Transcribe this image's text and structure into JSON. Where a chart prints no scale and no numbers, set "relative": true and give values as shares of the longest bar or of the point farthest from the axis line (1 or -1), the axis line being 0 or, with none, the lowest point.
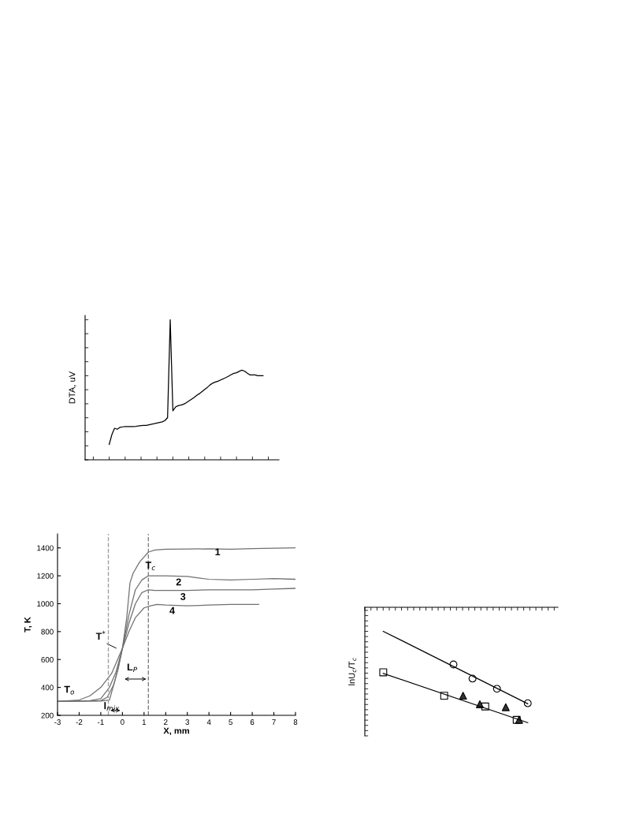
{
  "chart_data": [
    {
      "type": "line",
      "relative": true,
      "ylabel": "DTA, uV",
      "categories": [
        null,
        null,
        null,
        null,
        null,
        null,
        null,
        null,
        null,
        null,
        null,
        null,
        null,
        null,
        null,
        null,
        null,
        null,
        null,
        null,
        null,
        null,
        null,
        null,
        null,
        null,
        null,
        null,
        null,
        null,
        null,
        null,
        null,
        null,
        null,
        null,
        null,
        null,
        null,
        null,
        null,
        null,
        null,
        null,
        null,
        null,
        null,
        null,
        null,
        null,
        null,
        null,
        null,
        null,
        null,
        null,
        null,
        null,
        null
      ],
      "series": [
        {
          "color": "#000000",
          "values": [
            0.11,
            0.18,
            0.225,
            0.218,
            0.231,
            0.235,
            0.237,
            0.237,
            0.237,
            0.237,
            0.239,
            0.242,
            0.244,
            0.246,
            0.246,
            0.25,
            0.254,
            0.258,
            0.263,
            0.267,
            0.271,
            0.28,
            0.301,
            1,
            0.35,
            0.377,
            0.386,
            0.39,
            0.396,
            0.407,
            0.419,
            0.432,
            0.445,
            0.46,
            0.472,
            0.487,
            0.502,
            0.517,
            0.534,
            0.547,
            0.555,
            0.561,
            0.57,
            0.578,
            0.587,
            0.597,
            0.608,
            0.617,
            0.621,
            0.631,
            0.64,
            0.633,
            0.619,
            0.606,
            0.606,
            0.606,
            0.6,
            0.6,
            0.6
          ]
        }
      ]
    },
    {
      "type": "line",
      "xlabel": "X, mm",
      "ylabel": "T, K",
      "xlim": [
        -3,
        8
      ],
      "ylim": [
        200,
        1500
      ],
      "xticks": [
        -3,
        -2,
        -1,
        0,
        1,
        2,
        3,
        4,
        5,
        6,
        7,
        8
      ],
      "yticks": [
        200,
        400,
        600,
        800,
        1000,
        1200,
        1400
      ],
      "series": [
        {
          "color": "#707070",
          "x": [
            -3,
            -1,
            -0.6,
            -0.4,
            -0.2,
            0,
            0.2,
            0.35,
            0.5,
            0.8,
            1.2,
            1.5,
            2,
            3,
            4,
            5,
            6,
            7,
            8
          ],
          "values": [
            300,
            302,
            310,
            420,
            540,
            680,
            900,
            1150,
            1220,
            1300,
            1370,
            1385,
            1390,
            1392,
            1393,
            1390,
            1395,
            1398,
            1400
          ]
        },
        {
          "color": "#707070",
          "x": [
            -3,
            -1,
            -0.7,
            -0.4,
            -0.2,
            0,
            0.3,
            0.6,
            0.9,
            1.2,
            2,
            3,
            4,
            5,
            6,
            7,
            8
          ],
          "values": [
            300,
            305,
            330,
            420,
            530,
            680,
            920,
            1100,
            1170,
            1200,
            1200,
            1195,
            1175,
            1170,
            1175,
            1180,
            1175
          ]
        },
        {
          "color": "#707070",
          "x": [
            -3,
            -1.5,
            -1,
            -0.6,
            -0.3,
            0,
            0.3,
            0.6,
            0.9,
            1.2,
            1.5,
            2,
            3,
            4,
            5,
            6,
            7,
            8
          ],
          "values": [
            300,
            305,
            320,
            400,
            510,
            680,
            860,
            1000,
            1080,
            1100,
            1095,
            1095,
            1095,
            1100,
            1100,
            1100,
            1105,
            1110
          ]
        },
        {
          "color": "#707070",
          "x": [
            -3,
            -2,
            -1.5,
            -1,
            -0.5,
            0,
            0.3,
            0.6,
            1,
            1.3,
            1.6,
            2,
            3,
            4,
            5,
            6,
            6.3
          ],
          "values": [
            300,
            310,
            340,
            400,
            500,
            680,
            800,
            900,
            970,
            985,
            995,
            990,
            985,
            990,
            995,
            995,
            995
          ]
        }
      ],
      "ref_lines": [
        {
          "axis": "x",
          "value": 1.2,
          "color": "#808080",
          "line_style": "dashed"
        },
        {
          "axis": "x",
          "value": -0.65,
          "color": "#a0a0a0",
          "line_style": "dashed"
        }
      ],
      "annotations": [
        "1",
        "2",
        "3",
        "4",
        "T$_{c}$",
        "T$^{*}$",
        "L$_{P}$",
        "T$_{o}$",
        "l$_{mix}$"
      ]
    },
    {
      "type": "other",
      "ylabel": "lnU$_{c}$/T$_{c}$"
    }
  ]
}
